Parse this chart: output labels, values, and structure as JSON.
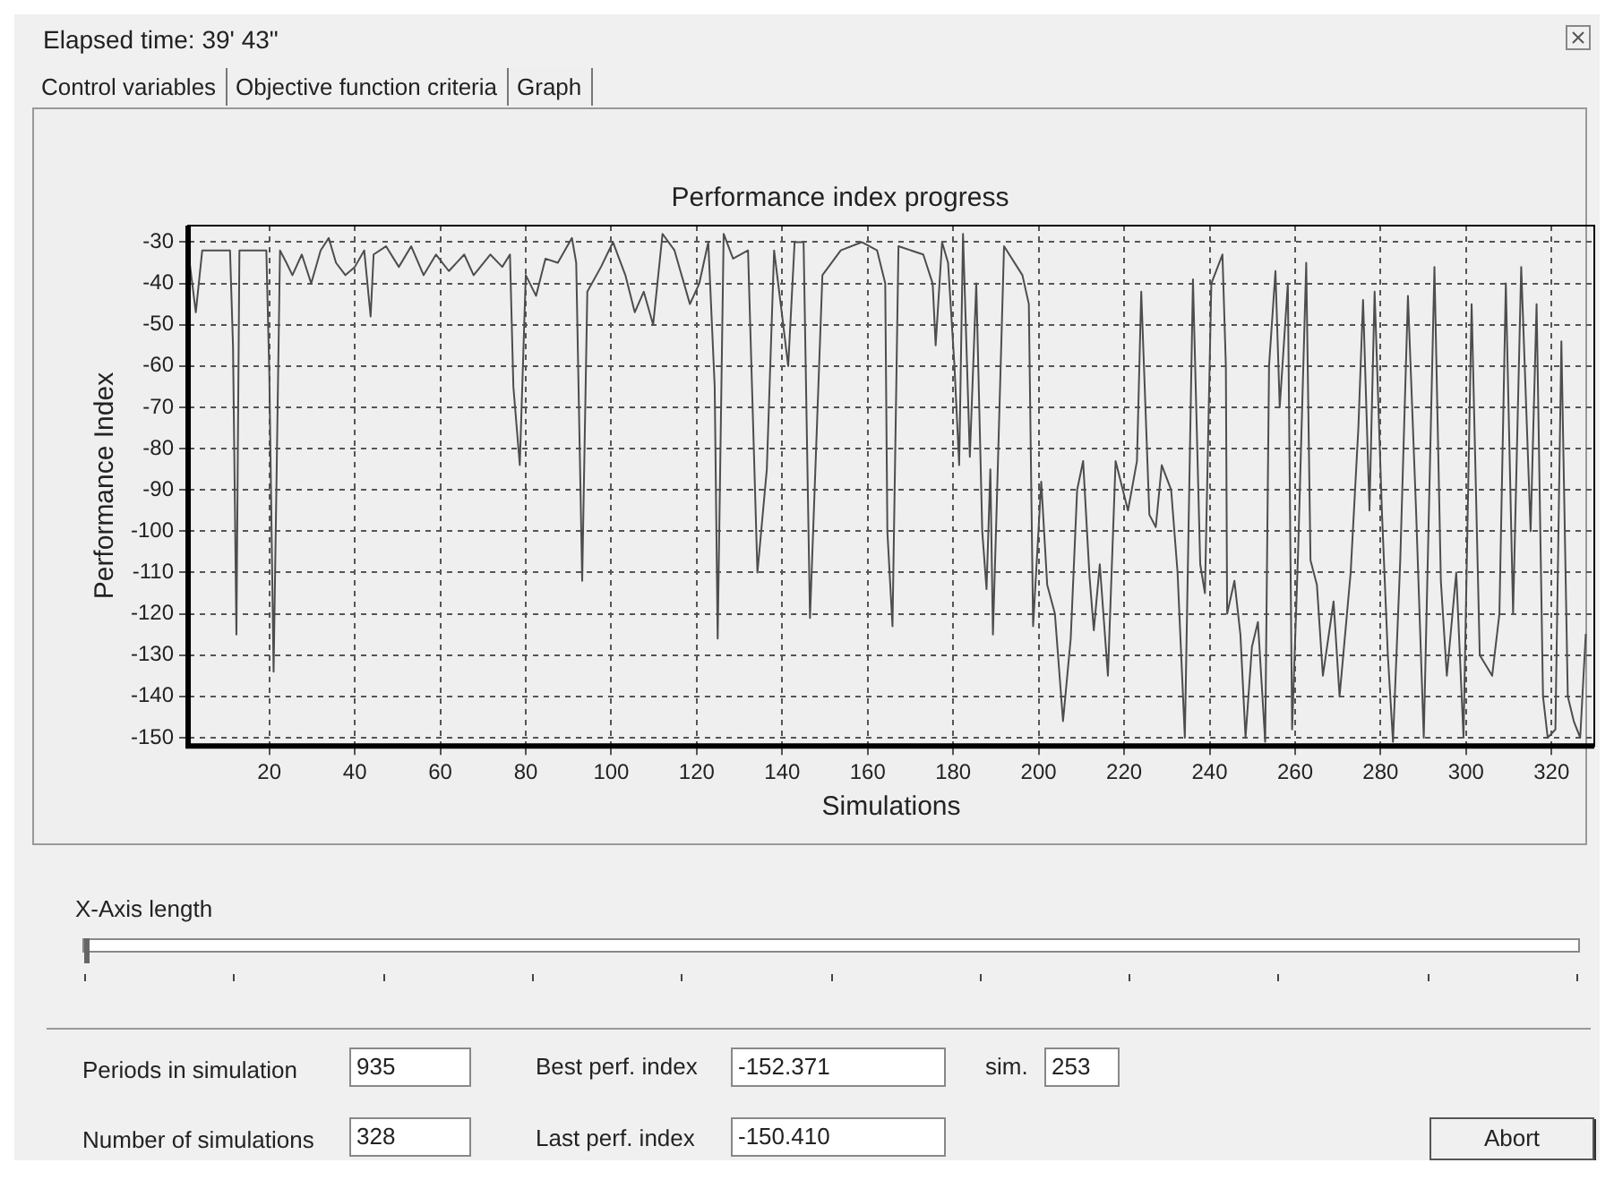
{
  "chart_data": {
    "type": "line",
    "title": "Performance index progress",
    "xlabel": "Simulations",
    "ylabel": "Performance Index",
    "annotations": [
      "Elapsed time:  39' 43\"",
      "Control variables",
      "Objective function criteria",
      "Graph",
      "X-Axis length",
      "Periods in simulation",
      "935",
      "Best perf. index",
      "-152.371",
      "sim.",
      "253",
      "Number of simulations",
      "328",
      "Last perf. index",
      "-150.410",
      "Abort"
    ],
    "xlim": [
      1,
      330
    ],
    "xticks": [
      20,
      40,
      60,
      80,
      100,
      120,
      140,
      160,
      180,
      200,
      220,
      240,
      260,
      280,
      300,
      320
    ],
    "ylim": [
      -152,
      -26
    ],
    "yticks": [
      -150,
      -140,
      -130,
      -120,
      -110,
      -100,
      -90,
      -80,
      -70,
      -60,
      -50,
      -40,
      -30
    ],
    "grid": true,
    "legend": false,
    "marker": "none",
    "line_style": "solid",
    "series": [
      {
        "color": "#4d4d4d",
        "x": [
          1,
          2.8,
          4.3,
          10.8,
          11.5,
          12.3,
          13,
          19.3,
          20,
          21,
          22.5,
          24,
          25.4,
          27.6,
          29.8,
          32,
          33.9,
          35.6,
          37.8,
          40,
          42.2,
          43.7,
          44.4,
          47.3,
          50.3,
          53.2,
          56.1,
          59,
          62,
          65.6,
          67.8,
          71.7,
          74.5,
          76.3,
          77.1,
          78.6,
          80,
          82.4,
          84.6,
          87.5,
          90.8,
          91.8,
          93.2,
          94.4,
          97.6,
          100.4,
          103.3,
          105.5,
          107.6,
          109.8,
          112,
          114.8,
          118.4,
          120.6,
          122.7,
          124.2,
          124.9,
          126.3,
          128.5,
          132,
          134.2,
          136.4,
          138.1,
          140,
          141.4,
          142.9,
          145,
          146.5,
          149.4,
          153.7,
          158.6,
          162.2,
          164.1,
          164.6,
          165.8,
          167.2,
          173,
          175.2,
          175.9,
          177.4,
          178.8,
          180.3,
          181.4,
          182.3,
          183.9,
          185.4,
          186.8,
          187.8,
          188.7,
          189.3,
          190.1,
          191.9,
          196.2,
          197.7,
          198.7,
          200.6,
          202,
          203.8,
          205.7,
          207.5,
          209,
          210.4,
          211.9,
          212.9,
          214.3,
          216.2,
          218,
          220.9,
          223,
          224,
          225.9,
          227.4,
          228.8,
          231,
          232.5,
          234.2,
          236.1,
          237.8,
          238.9,
          240.4,
          243,
          243.8,
          244.1,
          245.8,
          247.2,
          248.4,
          249.9,
          251.3,
          253,
          253.9,
          255.4,
          256.4,
          258.3,
          259.3,
          260.7,
          262.6,
          263.6,
          265.1,
          266.5,
          269,
          270.4,
          273,
          274.8,
          275.9,
          277.4,
          278.6,
          280.3,
          281.7,
          282.9,
          284.6,
          286.4,
          288.3,
          290.1,
          292.6,
          294.1,
          295.5,
          297.7,
          299.4,
          301.3,
          303.2,
          306.1,
          307.8,
          309.3,
          311,
          312.9,
          315.1,
          316.5,
          318,
          319.1,
          320.9,
          322.3,
          323.8,
          325.2,
          326.7,
          328
        ],
        "values": [
          -32,
          -47,
          -32,
          -32,
          -55,
          -125,
          -32,
          -32,
          -62,
          -134,
          -32,
          -35,
          -38,
          -33,
          -40,
          -32,
          -29,
          -35,
          -38,
          -36,
          -32,
          -48,
          -33,
          -31,
          -36,
          -31,
          -38,
          -33,
          -37,
          -33,
          -38,
          -33,
          -36,
          -33,
          -65,
          -84,
          -38,
          -43,
          -34,
          -35,
          -29,
          -35,
          -112,
          -42,
          -36,
          -30,
          -38,
          -47,
          -42,
          -50,
          -28,
          -32,
          -45,
          -40,
          -30,
          -65,
          -126,
          -28,
          -34,
          -32,
          -110,
          -85,
          -32,
          -48,
          -60,
          -30,
          -30,
          -121,
          -38,
          -32,
          -30,
          -32,
          -40,
          -100,
          -123,
          -31,
          -33,
          -40,
          -55,
          -30,
          -35,
          -60,
          -84,
          -28,
          -82,
          -40,
          -100,
          -114,
          -85,
          -125,
          -97,
          -31,
          -38,
          -45,
          -123,
          -88,
          -113,
          -120,
          -146,
          -126,
          -90,
          -83,
          -111,
          -124,
          -108,
          -135,
          -83,
          -95,
          -83,
          -42,
          -96,
          -99,
          -84,
          -90,
          -110,
          -150,
          -39,
          -108,
          -115,
          -40,
          -33,
          -60,
          -120,
          -112,
          -125,
          -150,
          -128,
          -122,
          -151,
          -60,
          -37,
          -70,
          -40,
          -148,
          -105,
          -35,
          -107,
          -113,
          -135,
          -117,
          -140,
          -110,
          -75,
          -44,
          -95,
          -42,
          -95,
          -130,
          -151,
          -107,
          -43,
          -95,
          -150,
          -36,
          -112,
          -135,
          -110,
          -150,
          -45,
          -130,
          -135,
          -120,
          -40,
          -120,
          -36,
          -100,
          -45,
          -140,
          -150,
          -148,
          -54,
          -140,
          -146,
          -150,
          -125
        ]
      }
    ]
  }
}
